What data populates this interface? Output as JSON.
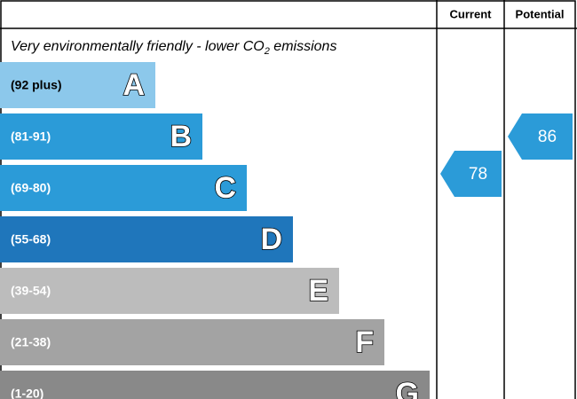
{
  "header": {
    "current": "Current",
    "potential": "Potential"
  },
  "subtitle": {
    "before": "Very environmentally friendly - lower CO",
    "sub": "2",
    "after": " emissions"
  },
  "bands": [
    {
      "range": "(92 plus)",
      "letter": "A",
      "color": "#8cc8eb"
    },
    {
      "range": "(81-91)",
      "letter": "B",
      "color": "#2b9bd8"
    },
    {
      "range": "(69-80)",
      "letter": "C",
      "color": "#2b9bd8"
    },
    {
      "range": "(55-68)",
      "letter": "D",
      "color": "#1f76bb"
    },
    {
      "range": "(39-54)",
      "letter": "E",
      "color": "#bcbcbc"
    },
    {
      "range": "(21-38)",
      "letter": "F",
      "color": "#a3a3a3"
    },
    {
      "range": "(1-20)",
      "letter": "G",
      "color": "#898989"
    }
  ],
  "current": {
    "value": 78,
    "color": "#2b9bd8"
  },
  "potential": {
    "value": 86,
    "color": "#2b9bd8"
  }
}
